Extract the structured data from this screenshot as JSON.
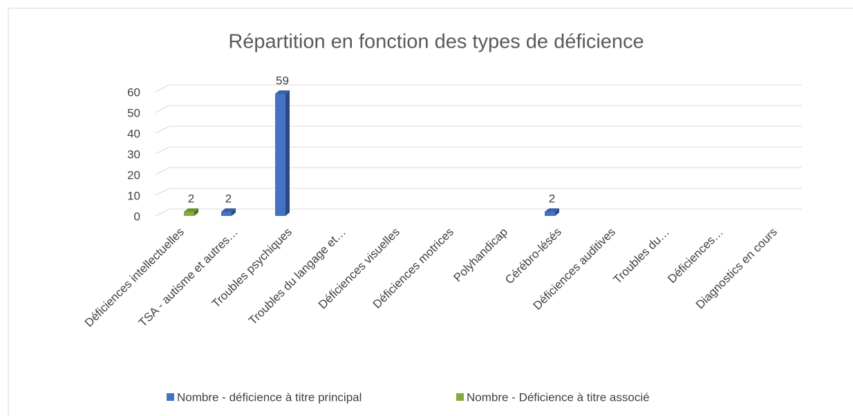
{
  "chart_data": {
    "type": "bar3d",
    "title": "Répartition en fonction des types de déficience",
    "categories": [
      "Déficiences intellectuelles",
      "TSA - autisme et autres…",
      "Troubles psychiques",
      "Troubles du langage et…",
      "Déficiences visuelles",
      "Déficiences motrices",
      "Polyhandicap",
      "Cérébro-lésés",
      "Déficiences auditives",
      "Troubles du…",
      "Déficiences…",
      "Diagnostics en cours"
    ],
    "series": [
      {
        "name": "Nombre - déficience à titre principal",
        "color": "#4472c4",
        "values": [
          null,
          2,
          59,
          null,
          null,
          null,
          null,
          2,
          null,
          null,
          null,
          null
        ]
      },
      {
        "name": "Nombre - Déficience à titre associé",
        "color": "#7fae3f",
        "values": [
          2,
          null,
          null,
          null,
          null,
          null,
          null,
          null,
          null,
          null,
          null,
          null
        ]
      }
    ],
    "ylim": [
      0,
      60
    ],
    "yticks": [
      0,
      10,
      20,
      30,
      40,
      50,
      60
    ],
    "grid": true,
    "legend": "bottom"
  }
}
